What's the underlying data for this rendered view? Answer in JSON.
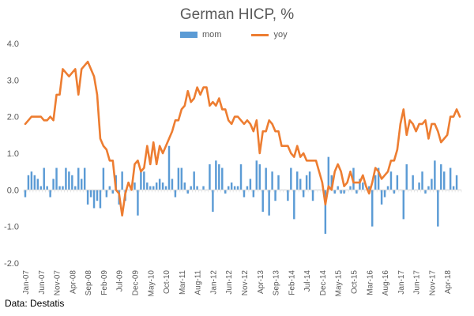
{
  "chart_data": {
    "type": "bar+line",
    "title": "German HICP, %",
    "source": "Data: Destatis",
    "ylim": [
      -2,
      4
    ],
    "yticks": [
      4,
      3,
      2,
      1,
      0,
      -1,
      -2
    ],
    "ytick_labels": [
      "4.0",
      "3.0",
      "2.0",
      "1.0",
      "0.0",
      "-1.0",
      "-2.0"
    ],
    "grid": false,
    "legend_position": "top",
    "start_month": "Jan-07",
    "xtick_labels": [
      {
        "label": "Jan-07",
        "index": 0
      },
      {
        "label": "Jun-07",
        "index": 5
      },
      {
        "label": "Nov-07",
        "index": 10
      },
      {
        "label": "Apr-08",
        "index": 15
      },
      {
        "label": "Sep-08",
        "index": 20
      },
      {
        "label": "Feb-09",
        "index": 25
      },
      {
        "label": "Jul-09",
        "index": 30
      },
      {
        "label": "Dec-09",
        "index": 35
      },
      {
        "label": "May-10",
        "index": 40
      },
      {
        "label": "Oct-10",
        "index": 45
      },
      {
        "label": "Mar-11",
        "index": 50
      },
      {
        "label": "Aug-11",
        "index": 55
      },
      {
        "label": "Jan-12",
        "index": 60
      },
      {
        "label": "Jun-12",
        "index": 65
      },
      {
        "label": "Nov-12",
        "index": 70
      },
      {
        "label": "Apr-13",
        "index": 75
      },
      {
        "label": "Sep-13",
        "index": 80
      },
      {
        "label": "Feb-14",
        "index": 85
      },
      {
        "label": "Jul-14",
        "index": 90
      },
      {
        "label": "Dec-14",
        "index": 95
      },
      {
        "label": "May-15",
        "index": 100
      },
      {
        "label": "Oct-15",
        "index": 105
      },
      {
        "label": "Mar-16",
        "index": 110
      },
      {
        "label": "Aug-16",
        "index": 115
      },
      {
        "label": "Jan-17",
        "index": 120
      },
      {
        "label": "Jun-17",
        "index": 125
      },
      {
        "label": "Nov-17",
        "index": 130
      },
      {
        "label": "Apr-18",
        "index": 135
      }
    ],
    "series": [
      {
        "name": "mom",
        "kind": "bar",
        "color": "#5B9BD5",
        "values": [
          -0.2,
          0.4,
          0.5,
          0.4,
          0.3,
          0.1,
          0.6,
          0.1,
          -0.2,
          0.3,
          0.6,
          0.1,
          0.1,
          0.6,
          0.5,
          0.4,
          0.1,
          0.6,
          0.3,
          0.6,
          -0.4,
          -0.2,
          -0.5,
          -0.3,
          -0.5,
          0.6,
          -0.2,
          0.1,
          -0.1,
          0.4,
          -0.4,
          0.5,
          -0.3,
          0.0,
          0.1,
          0.2,
          -0.7,
          0.5,
          0.5,
          0.2,
          0.1,
          0.1,
          0.2,
          0.3,
          0.2,
          0.1,
          1.2,
          0.3,
          -0.2,
          0.6,
          0.6,
          0.2,
          -0.1,
          0.1,
          0.5,
          0.1,
          0.0,
          0.1,
          0.0,
          0.7,
          -0.6,
          0.8,
          0.7,
          0.6,
          -0.1,
          0.1,
          0.2,
          0.1,
          0.1,
          0.7,
          -0.2,
          0.1,
          0.3,
          -0.2,
          0.8,
          0.7,
          -0.6,
          0.6,
          -0.7,
          0.5,
          -0.3,
          0.4,
          0.0,
          0.0,
          -0.3,
          0.6,
          -0.8,
          0.5,
          0.3,
          -0.2,
          0.4,
          0.5,
          -0.3,
          0.0,
          0.0,
          0.0,
          -1.2,
          0.9,
          0.4,
          -0.1,
          0.1,
          -0.1,
          -0.1,
          0.0,
          0.1,
          0.6,
          -0.1,
          0.3,
          0.2,
          0.0,
          0.1,
          -1.0,
          0.4,
          0.6,
          -0.4,
          -0.2,
          0.1,
          0.5,
          -0.1,
          0.4,
          0.0,
          -0.8,
          0.7,
          0.0,
          0.4,
          0.0,
          0.2,
          0.5,
          -0.1,
          0.1,
          0.3,
          0.8,
          -1.0,
          0.7,
          0.5,
          0.0,
          0.6,
          0.1,
          0.4
        ],
        "bar_values_note_hidden": false
      },
      {
        "name": "yoy",
        "kind": "line",
        "color": "#ED7D31",
        "values": [
          1.8,
          1.9,
          2.0,
          2.0,
          2.0,
          2.0,
          1.9,
          1.9,
          2.0,
          1.9,
          2.6,
          2.6,
          3.3,
          3.2,
          3.1,
          3.2,
          3.3,
          2.6,
          3.3,
          3.4,
          3.5,
          3.3,
          3.1,
          2.6,
          1.4,
          1.2,
          1.1,
          0.8,
          0.8,
          0.0,
          -0.1,
          -0.7,
          -0.1,
          0.2,
          0.0,
          0.7,
          0.8,
          0.5,
          0.6,
          1.2,
          0.7,
          1.3,
          0.7,
          1.2,
          1.0,
          1.2,
          1.4,
          1.6,
          1.9,
          1.9,
          2.2,
          2.3,
          2.7,
          2.4,
          2.5,
          2.8,
          2.6,
          2.8,
          2.8,
          2.3,
          2.4,
          2.3,
          2.5,
          2.2,
          2.2,
          1.9,
          1.8,
          2.0,
          2.0,
          1.9,
          1.8,
          1.9,
          1.8,
          1.6,
          1.9,
          1.0,
          1.6,
          1.6,
          1.9,
          1.8,
          1.6,
          1.6,
          1.2,
          1.2,
          1.2,
          1.0,
          0.9,
          1.2,
          0.9,
          1.0,
          0.8,
          0.8,
          0.8,
          0.8,
          0.5,
          0.2,
          -0.4,
          0.1,
          0.0,
          0.5,
          0.7,
          0.5,
          0.1,
          0.2,
          0.5,
          0.2,
          0.2,
          0.2,
          0.4,
          0.1,
          -0.1,
          0.2,
          0.6,
          0.5,
          0.3,
          0.4,
          0.5,
          0.8,
          0.8,
          1.1,
          1.8,
          2.2,
          1.5,
          1.9,
          1.8,
          1.6,
          1.8,
          1.8,
          1.9,
          1.4,
          1.8,
          1.8,
          1.6,
          1.3,
          1.4,
          1.5,
          2.0,
          2.0,
          2.2,
          2.0
        ]
      }
    ]
  }
}
